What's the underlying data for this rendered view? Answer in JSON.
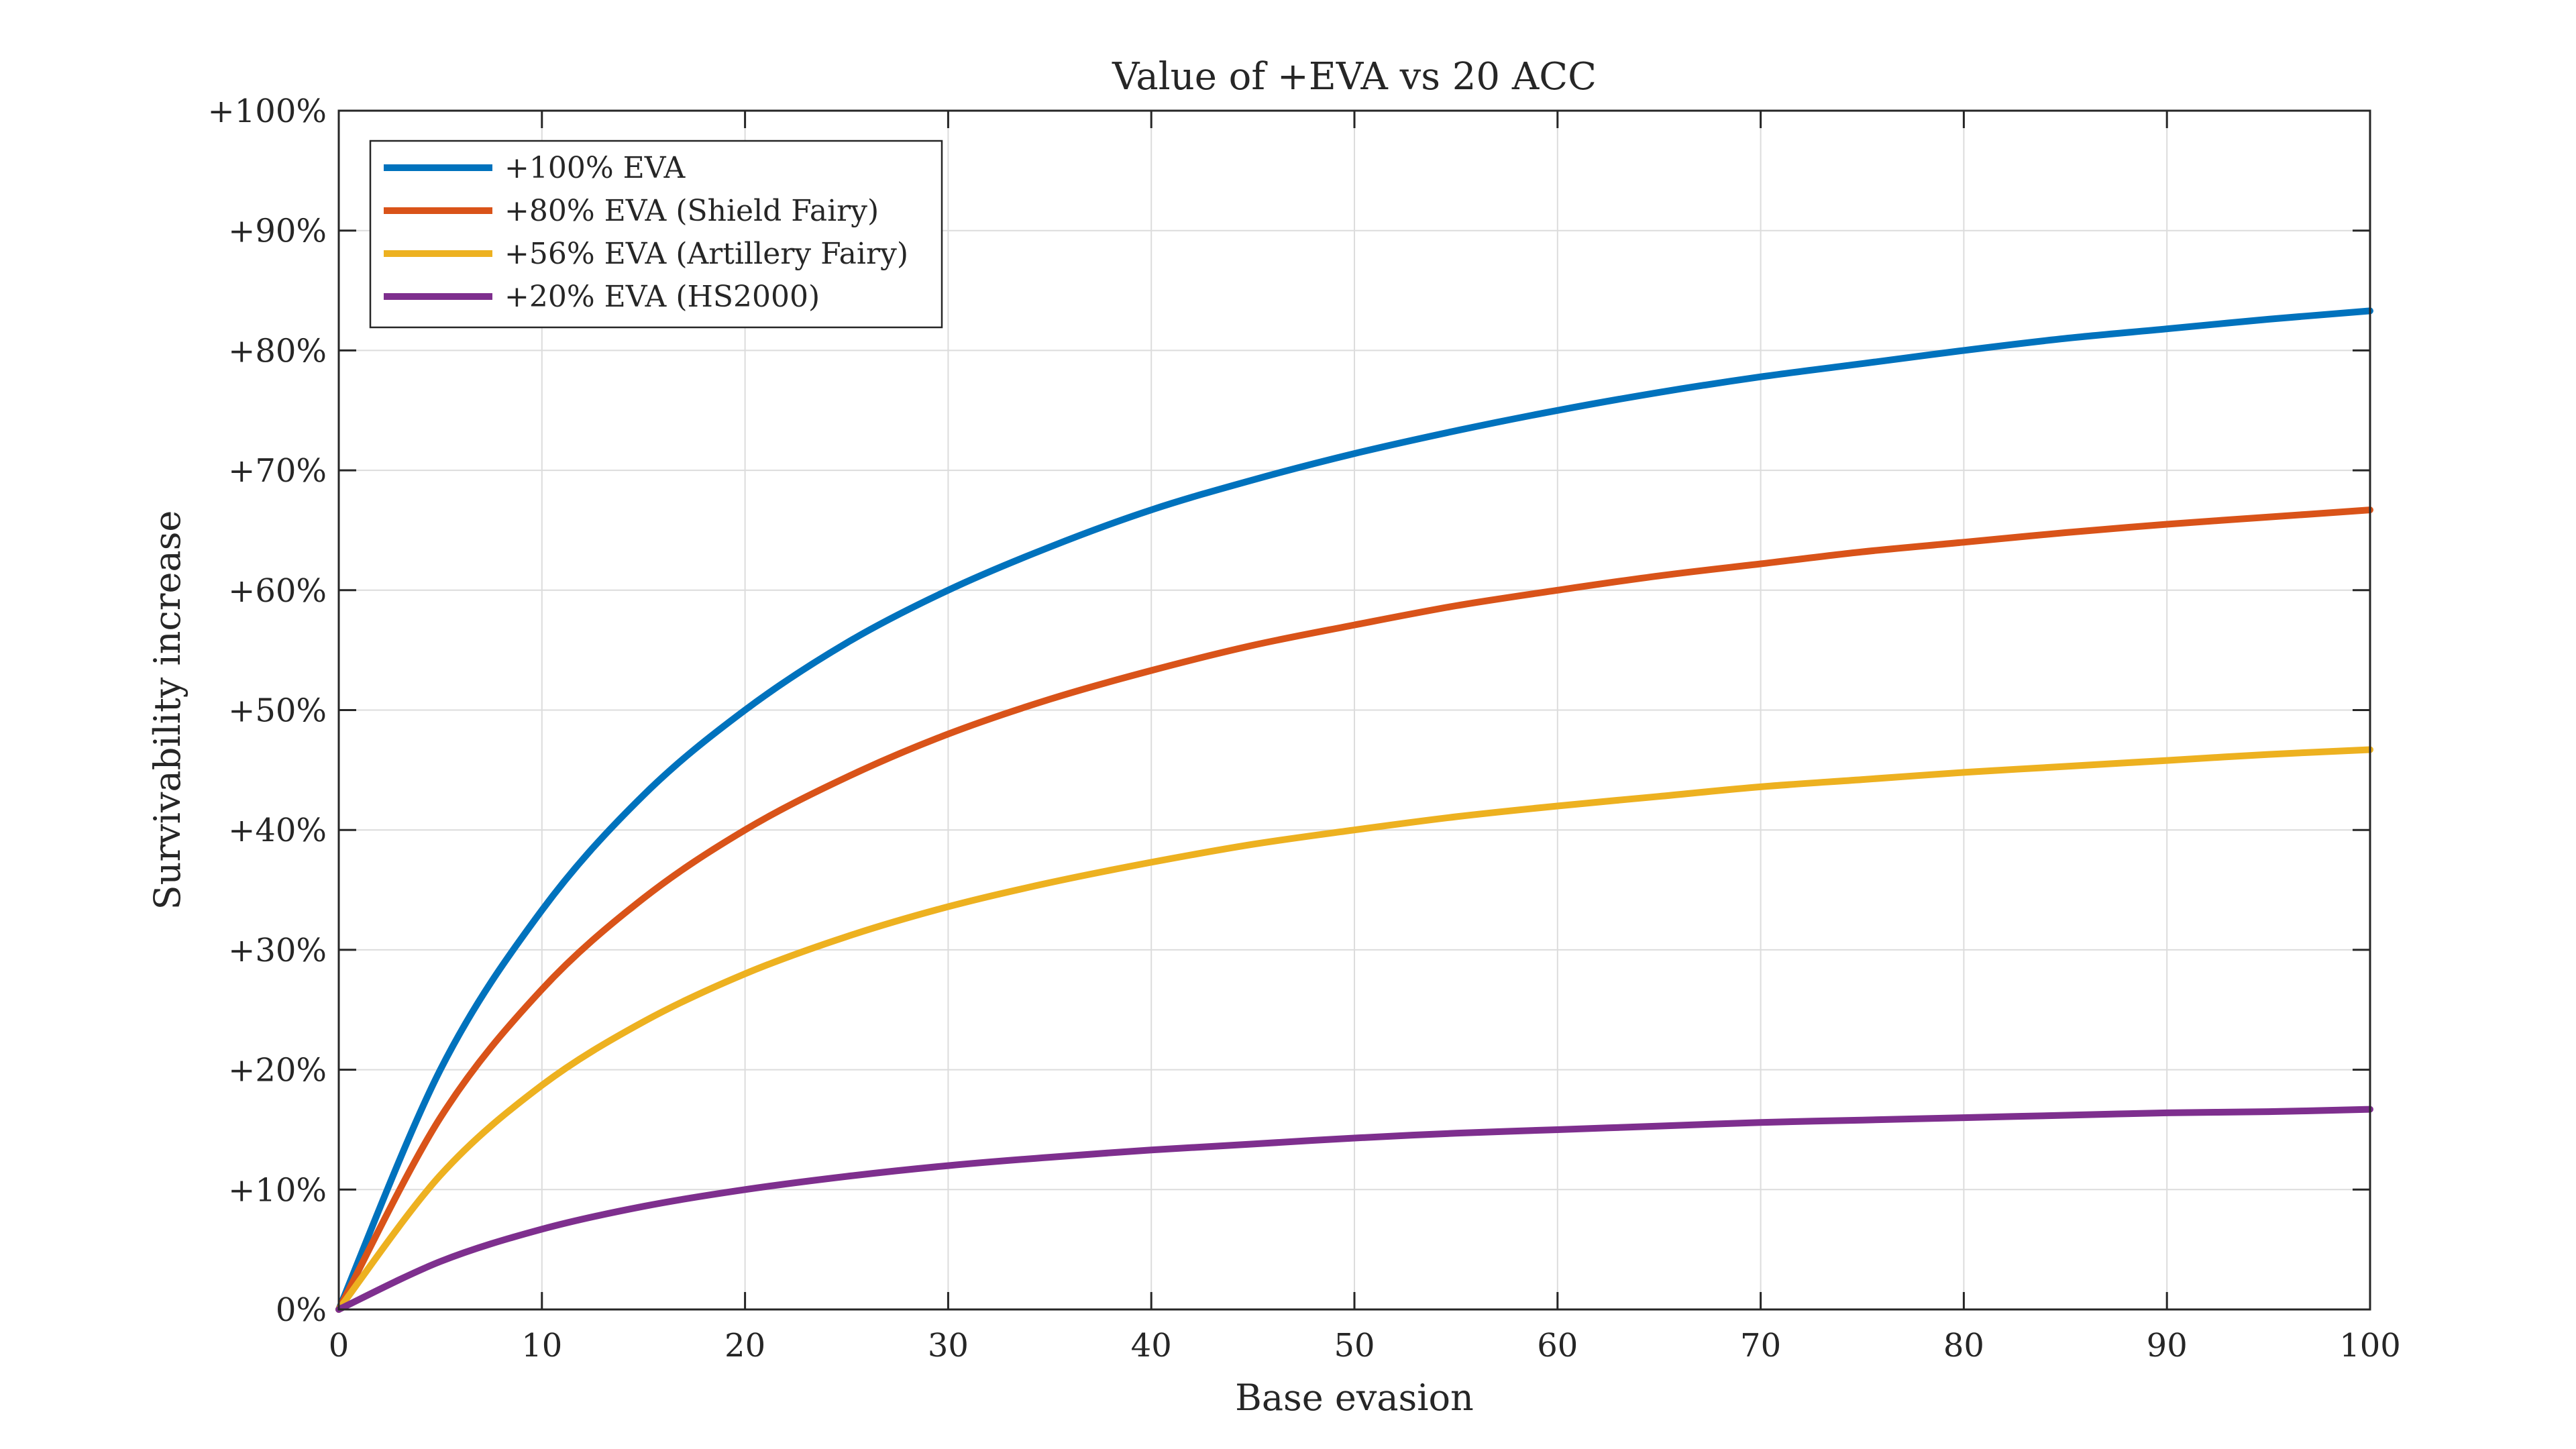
{
  "chart_data": {
    "type": "line",
    "title": "Value of +EVA vs 20 ACC",
    "xlabel": "Base evasion",
    "ylabel": "Survivability increase",
    "xlim": [
      0,
      100
    ],
    "ylim": [
      0,
      100
    ],
    "x_ticks": [
      0,
      10,
      20,
      30,
      40,
      50,
      60,
      70,
      80,
      90,
      100
    ],
    "x_tick_labels": [
      "0",
      "10",
      "20",
      "30",
      "40",
      "50",
      "60",
      "70",
      "80",
      "90",
      "100"
    ],
    "y_ticks": [
      0,
      10,
      20,
      30,
      40,
      50,
      60,
      70,
      80,
      90,
      100
    ],
    "y_tick_labels": [
      "0%",
      "+10%",
      "+20%",
      "+30%",
      "+40%",
      "+50%",
      "+60%",
      "+70%",
      "+80%",
      "+90%",
      "+100%"
    ],
    "grid": true,
    "legend_position": "top-left",
    "x": [
      0,
      5,
      10,
      15,
      20,
      25,
      30,
      35,
      40,
      45,
      50,
      55,
      60,
      65,
      70,
      75,
      80,
      85,
      90,
      95,
      100
    ],
    "series": [
      {
        "name": "+100% EVA",
        "color": "#0072BD",
        "values": [
          0,
          20.0,
          33.3,
          42.9,
          50.0,
          55.6,
          60.0,
          63.6,
          66.7,
          69.2,
          71.4,
          73.3,
          75.0,
          76.5,
          77.8,
          78.9,
          80.0,
          81.0,
          81.8,
          82.6,
          83.3
        ]
      },
      {
        "name": "+80% EVA (Shield Fairy)",
        "color": "#D95319",
        "values": [
          0,
          16.0,
          26.7,
          34.3,
          40.0,
          44.4,
          48.0,
          50.9,
          53.3,
          55.4,
          57.1,
          58.7,
          60.0,
          61.2,
          62.2,
          63.2,
          64.0,
          64.8,
          65.5,
          66.1,
          66.7
        ]
      },
      {
        "name": "+56% EVA (Artillery Fairy)",
        "color": "#EDB120",
        "values": [
          0,
          11.2,
          18.7,
          24.0,
          28.0,
          31.1,
          33.6,
          35.6,
          37.3,
          38.8,
          40.0,
          41.1,
          42.0,
          42.8,
          43.6,
          44.2,
          44.8,
          45.3,
          45.8,
          46.3,
          46.7
        ]
      },
      {
        "name": "+20% EVA (HS2000)",
        "color": "#7E2F8E",
        "values": [
          0,
          4.0,
          6.7,
          8.6,
          10.0,
          11.1,
          12.0,
          12.7,
          13.3,
          13.8,
          14.3,
          14.7,
          15.0,
          15.3,
          15.6,
          15.8,
          16.0,
          16.2,
          16.4,
          16.5,
          16.7
        ]
      }
    ]
  }
}
